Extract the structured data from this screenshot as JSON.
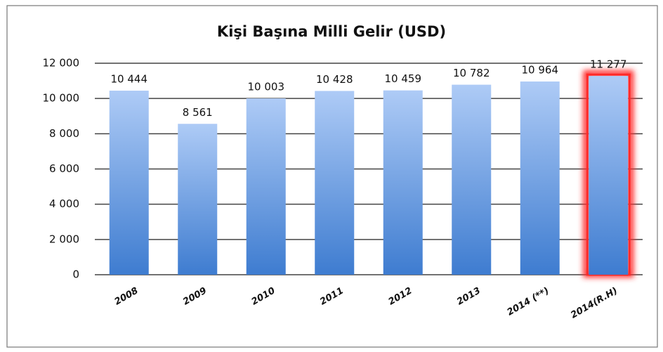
{
  "chart_data": {
    "type": "bar",
    "title": "Kişi Başına Milli Gelir (USD)",
    "categories": [
      "2008",
      "2009",
      "2010",
      "2011",
      "2012",
      "2013",
      "2014 (**)",
      "2014(R.H)"
    ],
    "values": [
      10444,
      8561,
      10003,
      10428,
      10459,
      10782,
      10964,
      11277
    ],
    "value_labels": [
      "10 444",
      "8 561",
      "10 003",
      "10 428",
      "10 459",
      "10 782",
      "10 964",
      "11 277"
    ],
    "color": "#4a86d6",
    "highlight_index": 7,
    "highlight_color": "#ff2a2a",
    "ylim": [
      0,
      12000
    ],
    "yticks": [
      0,
      {
        "value": 2000,
        "label": "2 000"
      },
      {
        "value": 4000,
        "label": "4 000"
      },
      {
        "value": 6000,
        "label": "6 000"
      },
      {
        "value": 8000,
        "label": "8 000"
      },
      {
        "value": 10000,
        "label": "10 000"
      },
      {
        "value": 12000,
        "label": "12 000"
      }
    ],
    "grid": true
  }
}
